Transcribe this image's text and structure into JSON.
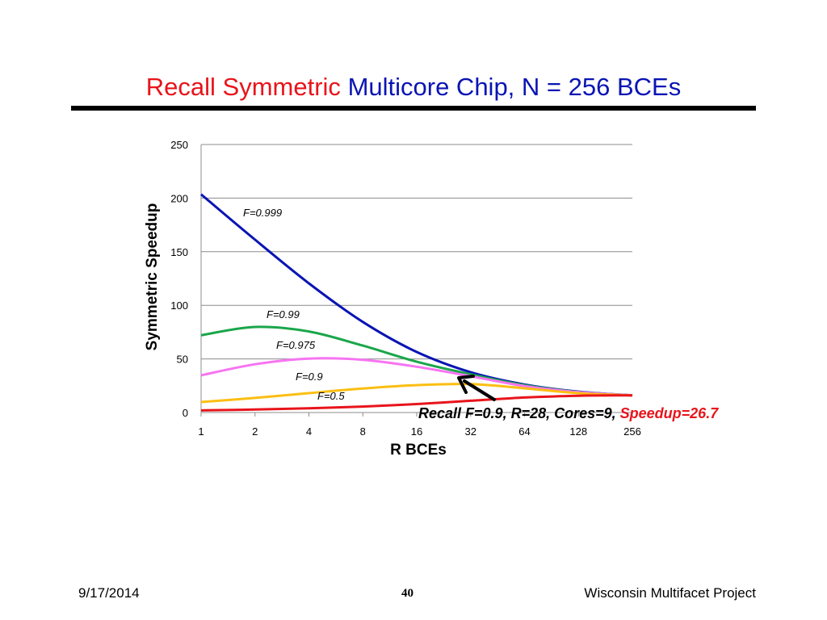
{
  "slide": {
    "title_part1": "Recall Symmetric",
    "title_part2": "Multicore Chip, N = 256 BCEs",
    "footer_date": "9/17/2014",
    "footer_page": "40",
    "footer_project": "Wisconsin Multifacet Project"
  },
  "annotation": {
    "text": "Recall F=0.9,  R=28, Cores=9, ",
    "highlight": "Speedup=26.7",
    "text_color": "#000000",
    "highlight_color": "#e8141b"
  },
  "chart_data": {
    "type": "line",
    "xlabel": "R BCEs",
    "ylabel": "Symmetric Speedup",
    "x_scale": "log2",
    "categories": [
      "1",
      "2",
      "4",
      "8",
      "16",
      "32",
      "64",
      "128",
      "256"
    ],
    "x_values": [
      1,
      2,
      4,
      8,
      16,
      32,
      64,
      128,
      256
    ],
    "ylim": [
      0,
      250
    ],
    "yticks": [
      0,
      50,
      100,
      150,
      200,
      250
    ],
    "grid": true,
    "series": [
      {
        "name": "F=0.999",
        "color": "#0a14b4",
        "values": [
          203.5,
          161.2,
          120.5,
          84.5,
          56.5,
          37.6,
          26.1,
          19.5,
          16.0
        ]
      },
      {
        "name": "F=0.99",
        "color": "#1aa64a",
        "values": [
          72.1,
          79.8,
          75.6,
          62.4,
          47.4,
          35.6,
          25.5,
          19.2,
          16.0
        ]
      },
      {
        "name": "F=0.975",
        "color": "#f774f2",
        "values": [
          34.7,
          45.0,
          50.3,
          49.2,
          42.7,
          33.9,
          24.7,
          19.0,
          16.0
        ]
      },
      {
        "name": "F=0.9",
        "color": "#fbbe12",
        "values": [
          9.8,
          13.6,
          18.1,
          22.4,
          25.5,
          26.5,
          22.6,
          18.0,
          16.0
        ]
      },
      {
        "name": "F=0.5",
        "color": "#e8141b",
        "values": [
          2.0,
          2.8,
          4.0,
          5.6,
          7.9,
          11.0,
          14.0,
          15.7,
          16.0
        ]
      }
    ]
  }
}
